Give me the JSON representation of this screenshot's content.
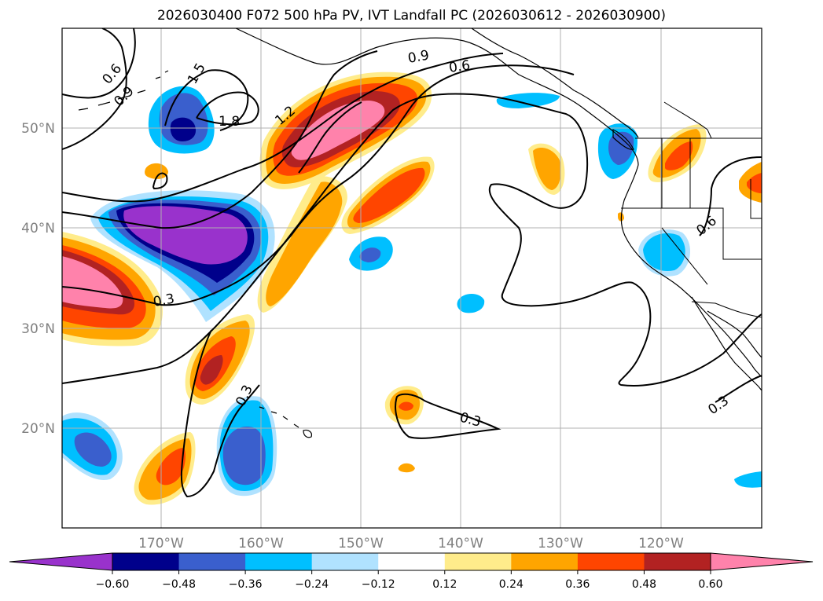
{
  "title": "2026030400 F072 500 hPa PV, IVT Landfall PC (2026030612 - 2026030900)",
  "axes": {
    "lat_labels": [
      "50°N",
      "40°N",
      "30°N",
      "20°N"
    ],
    "lon_labels": [
      "170°W",
      "160°W",
      "150°W",
      "140°W",
      "130°W",
      "120°W"
    ],
    "gridlines": true
  },
  "contour_labels": [
    "0.6",
    "0.9",
    "1.5",
    "1.8",
    "1.2",
    "0.9",
    "0.6",
    "0.3",
    "0.3",
    "0.3",
    "0.6",
    "0.3"
  ],
  "colorbar": {
    "ticks": [
      "−0.60",
      "−0.48",
      "−0.36",
      "−0.24",
      "−0.12",
      "0.12",
      "0.24",
      "0.36",
      "0.48",
      "0.60"
    ],
    "colors": [
      "#9932cc",
      "#00008b",
      "#3a5fcd",
      "#00bfff",
      "#b0e2ff",
      "#ffffff",
      "#ffec8b",
      "#ffa500",
      "#ff4500",
      "#b22222",
      "#ff82ab"
    ],
    "extend": "both"
  }
}
